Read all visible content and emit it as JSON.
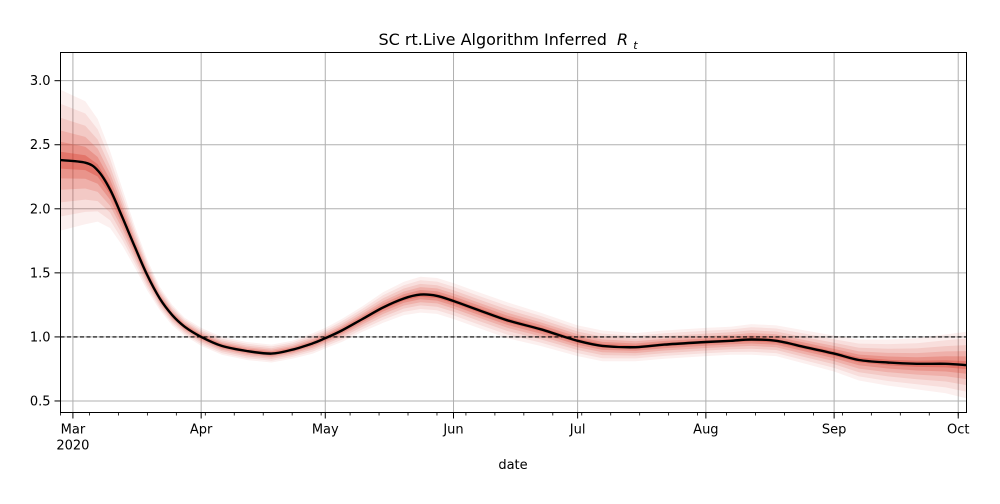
{
  "chart_data": {
    "type": "line",
    "title": "SC rt.Live Algorithm Inferred",
    "title_symbol": "R",
    "title_subscript": "t",
    "xlabel": "date",
    "ylabel": "",
    "x_range": [
      "2020-02-27",
      "2020-10-03"
    ],
    "ylim": [
      0.41,
      3.22
    ],
    "grid": true,
    "x_ticks": [
      {
        "date": "2020-03-01",
        "label": "Mar",
        "sublabel": "2020"
      },
      {
        "date": "2020-04-01",
        "label": "Apr"
      },
      {
        "date": "2020-05-01",
        "label": "May"
      },
      {
        "date": "2020-06-01",
        "label": "Jun"
      },
      {
        "date": "2020-07-01",
        "label": "Jul"
      },
      {
        "date": "2020-08-01",
        "label": "Aug"
      },
      {
        "date": "2020-09-01",
        "label": "Sep"
      },
      {
        "date": "2020-10-01",
        "label": "Oct"
      }
    ],
    "y_ticks": [
      {
        "value": 0.5,
        "label": "0.5"
      },
      {
        "value": 1.0,
        "label": "1.0"
      },
      {
        "value": 1.5,
        "label": "1.5"
      },
      {
        "value": 2.0,
        "label": "2.0"
      },
      {
        "value": 2.5,
        "label": "2.5"
      },
      {
        "value": 3.0,
        "label": "3.0"
      }
    ],
    "reference_line": {
      "y": 1.0,
      "style": "dashed",
      "color": "#000000"
    },
    "series": [
      {
        "x": [
          "2020-02-27",
          "2020-03-04",
          "2020-03-07",
          "2020-03-10",
          "2020-03-13",
          "2020-03-16",
          "2020-03-19",
          "2020-03-22",
          "2020-03-25",
          "2020-03-28",
          "2020-04-01",
          "2020-04-06",
          "2020-04-12",
          "2020-04-18",
          "2020-04-23",
          "2020-04-28",
          "2020-05-01",
          "2020-05-05",
          "2020-05-10",
          "2020-05-15",
          "2020-05-20",
          "2020-05-24",
          "2020-05-28",
          "2020-06-01",
          "2020-06-07",
          "2020-06-14",
          "2020-06-22",
          "2020-07-01",
          "2020-07-07",
          "2020-07-15",
          "2020-07-22",
          "2020-08-01",
          "2020-08-07",
          "2020-08-12",
          "2020-08-18",
          "2020-08-25",
          "2020-09-01",
          "2020-09-07",
          "2020-09-14",
          "2020-09-21",
          "2020-09-28",
          "2020-10-03"
        ],
        "values": [
          2.38,
          2.36,
          2.3,
          2.15,
          1.93,
          1.7,
          1.48,
          1.3,
          1.17,
          1.08,
          1.0,
          0.93,
          0.89,
          0.87,
          0.9,
          0.95,
          0.99,
          1.05,
          1.14,
          1.23,
          1.3,
          1.33,
          1.32,
          1.28,
          1.21,
          1.13,
          1.06,
          0.97,
          0.93,
          0.92,
          0.94,
          0.96,
          0.97,
          0.98,
          0.97,
          0.92,
          0.87,
          0.82,
          0.8,
          0.79,
          0.79,
          0.78
        ],
        "band_half_width": [
          0.55,
          0.48,
          0.4,
          0.3,
          0.22,
          0.16,
          0.12,
          0.09,
          0.08,
          0.07,
          0.07,
          0.07,
          0.07,
          0.07,
          0.07,
          0.08,
          0.08,
          0.09,
          0.1,
          0.12,
          0.13,
          0.14,
          0.14,
          0.14,
          0.14,
          0.14,
          0.13,
          0.12,
          0.12,
          0.11,
          0.11,
          0.11,
          0.11,
          0.12,
          0.12,
          0.13,
          0.14,
          0.16,
          0.18,
          0.2,
          0.23,
          0.26
        ],
        "line_color": "#000000",
        "band_color": "#d7301f"
      }
    ]
  }
}
